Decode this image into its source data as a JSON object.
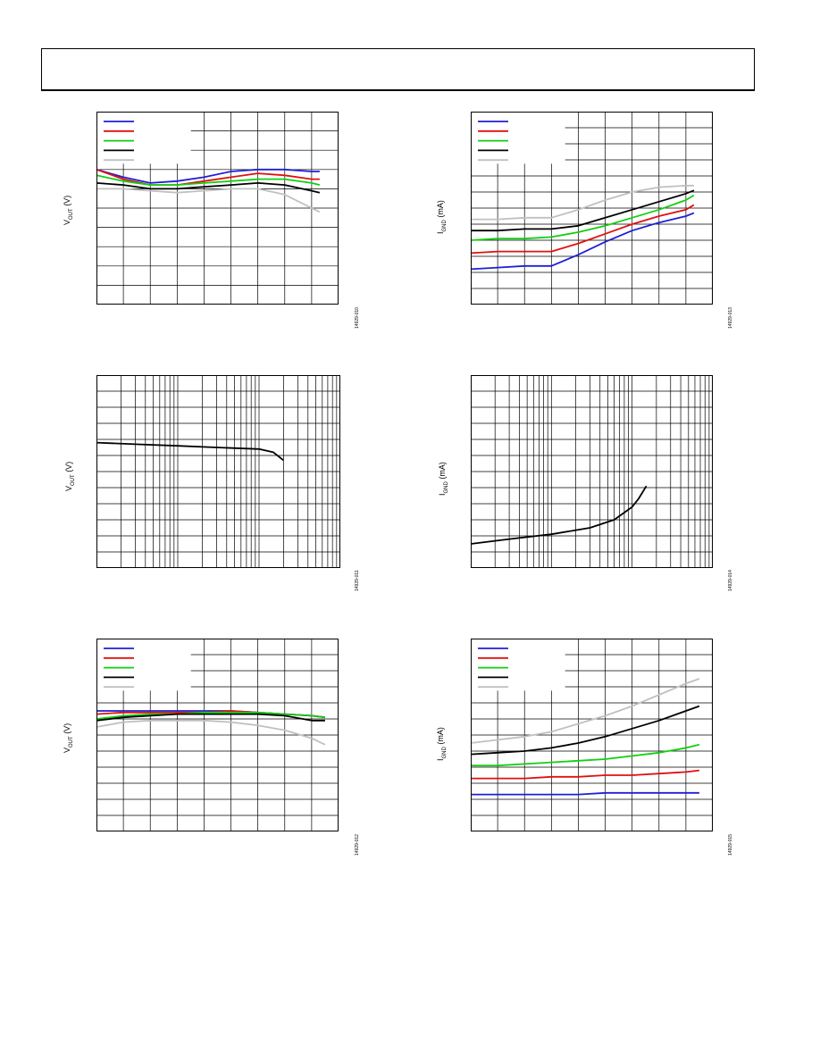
{
  "header": {},
  "figures": [
    {
      "id": "f1",
      "ylabel_main": "V",
      "ylabel_sub": "OUT",
      "ylabel_unit": " (V)",
      "fig_id": "14929-010"
    },
    {
      "id": "f2",
      "ylabel_main": "I",
      "ylabel_sub": "GND",
      "ylabel_unit": " (mA)",
      "fig_id": "14929-013"
    },
    {
      "id": "f3",
      "ylabel_main": "V",
      "ylabel_sub": "OUT",
      "ylabel_unit": " (V)",
      "fig_id": "14929-011"
    },
    {
      "id": "f4",
      "ylabel_main": "I",
      "ylabel_sub": "GND",
      "ylabel_unit": " (mA)",
      "fig_id": "14929-014"
    },
    {
      "id": "f5",
      "ylabel_main": "V",
      "ylabel_sub": "OUT",
      "ylabel_unit": " (V)",
      "fig_id": "14929-012"
    },
    {
      "id": "f6",
      "ylabel_main": "I",
      "ylabel_sub": "GND",
      "ylabel_unit": " (mA)",
      "fig_id": "14929-015"
    }
  ],
  "series_colors": [
    "#1f1fd6",
    "#e01010",
    "#10d010",
    "#000000",
    "#c0c0c0"
  ],
  "chart_data": [
    {
      "type": "line",
      "scale": "linear",
      "xlim": [
        0,
        9
      ],
      "ylim": [
        0,
        10
      ],
      "series": [
        {
          "color": "#1f1fd6",
          "x": [
            0,
            1,
            2,
            3,
            4,
            5,
            6,
            7,
            8,
            8.3
          ],
          "y": [
            7.0,
            6.6,
            6.3,
            6.4,
            6.6,
            6.9,
            7.0,
            7.0,
            6.9,
            6.9
          ]
        },
        {
          "color": "#e01010",
          "x": [
            0,
            1,
            2,
            3,
            4,
            5,
            6,
            7,
            8,
            8.3
          ],
          "y": [
            7.0,
            6.5,
            6.2,
            6.2,
            6.4,
            6.6,
            6.8,
            6.7,
            6.5,
            6.5
          ]
        },
        {
          "color": "#10d010",
          "x": [
            0,
            1,
            2,
            3,
            4,
            5,
            6,
            7,
            8,
            8.3
          ],
          "y": [
            6.7,
            6.4,
            6.2,
            6.2,
            6.3,
            6.4,
            6.5,
            6.5,
            6.3,
            6.2
          ]
        },
        {
          "color": "#000000",
          "x": [
            0,
            1,
            2,
            3,
            4,
            5,
            6,
            7,
            8,
            8.3
          ],
          "y": [
            6.3,
            6.2,
            6.0,
            6.0,
            6.1,
            6.2,
            6.3,
            6.2,
            5.9,
            5.8
          ]
        },
        {
          "color": "#c0c0c0",
          "x": [
            0,
            1,
            2,
            3,
            4,
            5,
            6,
            7,
            8,
            8.3
          ],
          "y": [
            6.0,
            6.0,
            5.9,
            5.8,
            5.9,
            6.0,
            6.0,
            5.7,
            5.0,
            4.8
          ]
        }
      ]
    },
    {
      "type": "line",
      "scale": "linear",
      "xlim": [
        0,
        9
      ],
      "ylim": [
        0,
        12
      ],
      "series": [
        {
          "color": "#1f1fd6",
          "x": [
            0,
            1,
            2,
            3,
            4,
            5,
            6,
            7,
            8,
            8.3
          ],
          "y": [
            2.2,
            2.3,
            2.4,
            2.4,
            3.1,
            3.9,
            4.6,
            5.1,
            5.5,
            5.7
          ]
        },
        {
          "color": "#e01010",
          "x": [
            0,
            1,
            2,
            3,
            4,
            5,
            6,
            7,
            8,
            8.3
          ],
          "y": [
            3.2,
            3.3,
            3.3,
            3.3,
            3.8,
            4.4,
            5.0,
            5.5,
            5.9,
            6.2
          ]
        },
        {
          "color": "#10d010",
          "x": [
            0,
            1,
            2,
            3,
            4,
            5,
            6,
            7,
            8,
            8.3
          ],
          "y": [
            4.0,
            4.1,
            4.1,
            4.2,
            4.5,
            4.9,
            5.4,
            5.9,
            6.5,
            6.8
          ]
        },
        {
          "color": "#000000",
          "x": [
            0,
            1,
            2,
            3,
            4,
            5,
            6,
            7,
            8,
            8.3
          ],
          "y": [
            4.6,
            4.6,
            4.7,
            4.7,
            4.9,
            5.4,
            5.9,
            6.4,
            6.9,
            7.1
          ]
        },
        {
          "color": "#c0c0c0",
          "x": [
            0,
            1,
            2,
            3,
            4,
            5,
            6,
            7,
            8,
            8.3
          ],
          "y": [
            5.3,
            5.3,
            5.4,
            5.4,
            5.9,
            6.5,
            7.0,
            7.3,
            7.4,
            7.4
          ]
        }
      ]
    },
    {
      "type": "line",
      "scale": "log",
      "decades": 3,
      "ylim": [
        0,
        12
      ],
      "series": [
        {
          "color": "#000000",
          "x": [
            1,
            3,
            10,
            30,
            100,
            150,
            200
          ],
          "y": [
            7.8,
            7.7,
            7.6,
            7.5,
            7.4,
            7.2,
            6.7
          ]
        }
      ]
    },
    {
      "type": "line",
      "scale": "log",
      "decades": 3,
      "ylim": [
        0,
        12
      ],
      "series": [
        {
          "color": "#000000",
          "x": [
            1,
            3,
            10,
            30,
            60,
            100,
            120,
            150
          ],
          "y": [
            1.5,
            1.8,
            2.1,
            2.5,
            3.0,
            3.8,
            4.3,
            5.1
          ]
        }
      ]
    },
    {
      "type": "line",
      "scale": "linear",
      "xlim": [
        0,
        9
      ],
      "ylim": [
        0,
        12
      ],
      "series": [
        {
          "color": "#1f1fd6",
          "x": [
            0,
            1,
            2,
            3,
            4,
            5,
            6,
            7,
            8,
            8.5
          ],
          "y": [
            7.5,
            7.5,
            7.5,
            7.5,
            7.5,
            7.5,
            7.4,
            7.3,
            7.2,
            7.1
          ]
        },
        {
          "color": "#e01010",
          "x": [
            0,
            1,
            2,
            3,
            4,
            5,
            6,
            7,
            8,
            8.5
          ],
          "y": [
            7.3,
            7.4,
            7.4,
            7.4,
            7.4,
            7.5,
            7.4,
            7.3,
            7.2,
            7.1
          ]
        },
        {
          "color": "#10d010",
          "x": [
            0,
            1,
            2,
            3,
            4,
            5,
            6,
            7,
            8,
            8.5
          ],
          "y": [
            7.0,
            7.2,
            7.3,
            7.3,
            7.4,
            7.4,
            7.4,
            7.3,
            7.2,
            7.1
          ]
        },
        {
          "color": "#000000",
          "x": [
            0,
            1,
            2,
            3,
            4,
            5,
            6,
            7,
            8,
            8.5
          ],
          "y": [
            6.9,
            7.1,
            7.2,
            7.3,
            7.3,
            7.3,
            7.3,
            7.2,
            6.9,
            6.9
          ]
        },
        {
          "color": "#c0c0c0",
          "x": [
            0,
            1,
            2,
            3,
            4,
            5,
            6,
            7,
            8,
            8.5
          ],
          "y": [
            6.5,
            6.8,
            6.9,
            6.9,
            6.9,
            6.8,
            6.6,
            6.3,
            5.8,
            5.4
          ]
        }
      ]
    },
    {
      "type": "line",
      "scale": "linear",
      "xlim": [
        0,
        9
      ],
      "ylim": [
        0,
        12
      ],
      "series": [
        {
          "color": "#1f1fd6",
          "x": [
            0,
            1,
            2,
            3,
            4,
            5,
            6,
            7,
            8,
            8.5
          ],
          "y": [
            2.3,
            2.3,
            2.3,
            2.3,
            2.3,
            2.4,
            2.4,
            2.4,
            2.4,
            2.4
          ]
        },
        {
          "color": "#e01010",
          "x": [
            0,
            1,
            2,
            3,
            4,
            5,
            6,
            7,
            8,
            8.5
          ],
          "y": [
            3.3,
            3.3,
            3.3,
            3.4,
            3.4,
            3.5,
            3.5,
            3.6,
            3.7,
            3.8
          ]
        },
        {
          "color": "#10d010",
          "x": [
            0,
            1,
            2,
            3,
            4,
            5,
            6,
            7,
            8,
            8.5
          ],
          "y": [
            4.1,
            4.1,
            4.2,
            4.3,
            4.4,
            4.5,
            4.7,
            4.9,
            5.2,
            5.4
          ]
        },
        {
          "color": "#000000",
          "x": [
            0,
            1,
            2,
            3,
            4,
            5,
            6,
            7,
            8,
            8.5
          ],
          "y": [
            4.8,
            4.9,
            5.0,
            5.2,
            5.5,
            5.9,
            6.4,
            6.9,
            7.5,
            7.8
          ]
        },
        {
          "color": "#c0c0c0",
          "x": [
            0,
            1,
            2,
            3,
            4,
            5,
            6,
            7,
            8,
            8.5
          ],
          "y": [
            5.5,
            5.7,
            5.9,
            6.2,
            6.7,
            7.2,
            7.8,
            8.5,
            9.2,
            9.5
          ]
        }
      ]
    }
  ]
}
